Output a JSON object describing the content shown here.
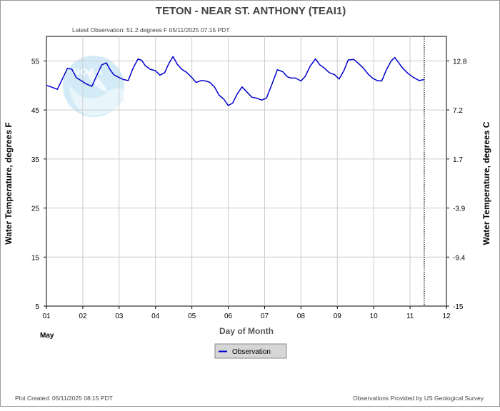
{
  "chart_data": {
    "type": "line",
    "title": "TETON - NEAR ST. ANTHONY  (TEAI1)",
    "subtitle": "Latest Observation: 51.2 degrees F 05/11/2025 07:15 PDT",
    "xlabel": "Day of Month",
    "month_label": "May",
    "ylabel_left": "Water Temperature, degrees F",
    "ylabel_right": "Water Temperature, degrees C",
    "xlim": [
      1,
      12
    ],
    "ylim": [
      5,
      60
    ],
    "x_ticks": [
      "01",
      "02",
      "03",
      "04",
      "05",
      "06",
      "07",
      "08",
      "09",
      "10",
      "11",
      "12"
    ],
    "y_ticks_left": [
      "5",
      "15",
      "25",
      "35",
      "45",
      "55"
    ],
    "y_ticks_right": [
      "-15",
      "-9.4",
      "-3.9",
      "1.7",
      "7.2",
      "12.8"
    ],
    "grid": true,
    "legend_position": "bottom-center",
    "latest_observation_day": 11.39,
    "series": [
      {
        "name": "Observation",
        "color": "#0000cc",
        "x": [
          1.0,
          1.13,
          1.3,
          1.45,
          1.58,
          1.7,
          1.82,
          1.95,
          2.1,
          2.25,
          2.4,
          2.52,
          2.65,
          2.75,
          2.85,
          3.0,
          3.12,
          3.25,
          3.38,
          3.52,
          3.62,
          3.72,
          3.85,
          4.0,
          4.12,
          4.25,
          4.36,
          4.48,
          4.6,
          4.72,
          4.85,
          5.0,
          5.12,
          5.25,
          5.38,
          5.5,
          5.62,
          5.75,
          5.88,
          6.0,
          6.12,
          6.25,
          6.38,
          6.52,
          6.65,
          6.78,
          6.92,
          7.05,
          7.2,
          7.35,
          7.5,
          7.62,
          7.72,
          7.85,
          8.0,
          8.12,
          8.25,
          8.4,
          8.52,
          8.65,
          8.78,
          8.92,
          9.05,
          9.18,
          9.3,
          9.45,
          9.58,
          9.72,
          9.85,
          9.98,
          10.1,
          10.22,
          10.35,
          10.48,
          10.58,
          10.68,
          10.8,
          10.95,
          11.1,
          11.25,
          11.39
        ],
        "values": [
          50.0,
          49.7,
          49.2,
          51.5,
          53.5,
          53.3,
          51.6,
          51.0,
          50.3,
          49.8,
          52.3,
          54.2,
          54.6,
          53.2,
          52.2,
          51.6,
          51.2,
          51.0,
          53.5,
          55.4,
          55.1,
          54.0,
          53.3,
          53.0,
          52.1,
          52.6,
          54.4,
          55.9,
          54.3,
          53.3,
          52.7,
          51.6,
          50.6,
          51.0,
          50.9,
          50.6,
          49.7,
          48.0,
          47.2,
          45.9,
          46.4,
          48.3,
          49.7,
          48.6,
          47.6,
          47.4,
          47.0,
          47.4,
          50.2,
          53.2,
          52.8,
          51.8,
          51.5,
          51.5,
          50.9,
          51.9,
          53.9,
          55.4,
          54.2,
          53.5,
          52.6,
          52.2,
          51.3,
          53.0,
          55.2,
          55.3,
          54.5,
          53.5,
          52.3,
          51.4,
          51.0,
          50.9,
          53.2,
          55.0,
          55.7,
          54.7,
          53.5,
          52.4,
          51.6,
          51.0,
          51.2
        ]
      }
    ]
  },
  "footer": {
    "plot_created": "Plot Created: 05/11/2025 08:15 PDT",
    "provider": "Observations Provided by US Geological Survey"
  },
  "logo": {
    "text": "NOAA"
  },
  "colors": {
    "series": "#0000cc",
    "grid": "#cccccc",
    "logo": "#cbe8f6"
  }
}
